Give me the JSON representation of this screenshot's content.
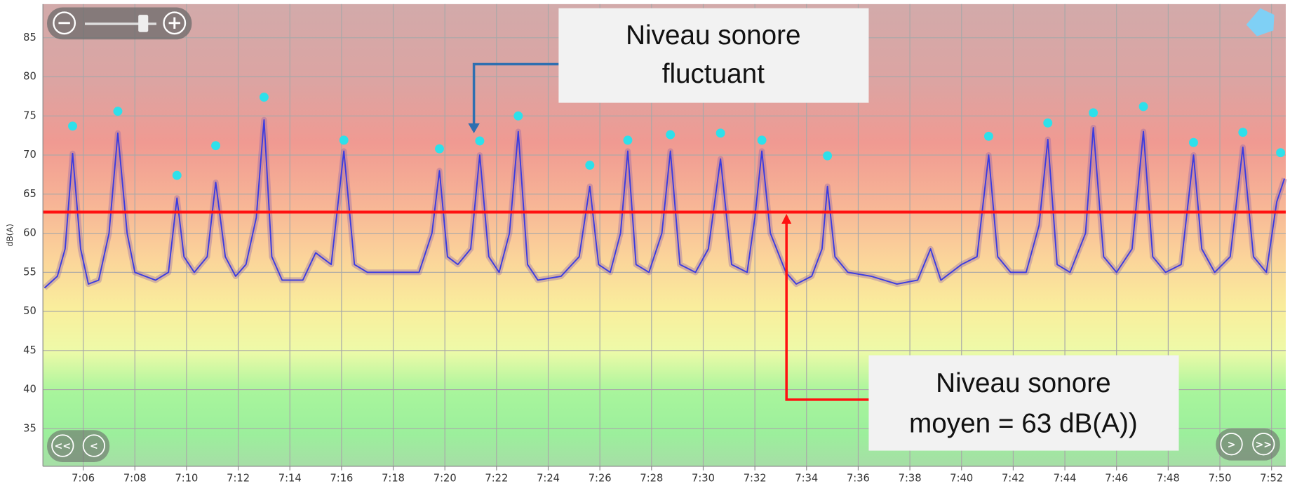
{
  "chart_data": {
    "type": "line",
    "y_label": "dB(A)",
    "xlim": [
      424.44,
      472.55
    ],
    "ylim": [
      30.2,
      89.3
    ],
    "yticks": [
      35,
      40,
      45,
      50,
      55,
      60,
      65,
      70,
      75,
      80,
      85
    ],
    "xticks": [
      {
        "value": 426,
        "label": "7:06"
      },
      {
        "value": 428,
        "label": "7:08"
      },
      {
        "value": 430,
        "label": "7:10"
      },
      {
        "value": 432,
        "label": "7:12"
      },
      {
        "value": 434,
        "label": "7:14"
      },
      {
        "value": 436,
        "label": "7:16"
      },
      {
        "value": 438,
        "label": "7:18"
      },
      {
        "value": 440,
        "label": "7:20"
      },
      {
        "value": 442,
        "label": "7:22"
      },
      {
        "value": 444,
        "label": "7:24"
      },
      {
        "value": 446,
        "label": "7:26"
      },
      {
        "value": 448,
        "label": "7:28"
      },
      {
        "value": 450,
        "label": "7:30"
      },
      {
        "value": 452,
        "label": "7:32"
      },
      {
        "value": 454,
        "label": "7:34"
      },
      {
        "value": 456,
        "label": "7:36"
      },
      {
        "value": 458,
        "label": "7:38"
      },
      {
        "value": 460,
        "label": "7:40"
      },
      {
        "value": 462,
        "label": "7:42"
      },
      {
        "value": 464,
        "label": "7:44"
      },
      {
        "value": 466,
        "label": "7:46"
      },
      {
        "value": 468,
        "label": "7:48"
      },
      {
        "value": 470,
        "label": "7:50"
      },
      {
        "value": 472,
        "label": "7:52"
      }
    ],
    "grid": true,
    "lines": [
      {
        "color": "#3b3be0",
        "x": [
          424.5,
          425.0,
          425.3,
          425.59,
          425.9,
          426.2,
          426.6,
          427.0,
          427.34,
          427.7,
          428.0,
          428.8,
          429.3,
          429.63,
          429.9,
          430.3,
          430.8,
          431.13,
          431.5,
          431.9,
          432.3,
          432.7,
          433.0,
          433.3,
          433.7,
          434.5,
          435.0,
          435.6,
          436.09,
          436.5,
          437.0,
          438.0,
          439.0,
          439.5,
          439.79,
          440.1,
          440.5,
          441.0,
          441.35,
          441.7,
          442.1,
          442.5,
          442.84,
          443.2,
          443.6,
          444.5,
          445.2,
          445.61,
          445.95,
          446.4,
          446.8,
          447.08,
          447.4,
          447.9,
          448.4,
          448.73,
          449.1,
          449.7,
          450.2,
          450.67,
          451.1,
          451.7,
          452.0,
          452.27,
          452.6,
          453.2,
          453.6,
          454.2,
          454.6,
          454.81,
          455.1,
          455.6,
          456.5,
          457.5,
          458.3,
          458.8,
          459.2,
          460.0,
          460.6,
          461.05,
          461.4,
          461.9,
          462.5,
          463.0,
          463.34,
          463.7,
          464.2,
          464.8,
          465.1,
          465.5,
          466.0,
          466.6,
          467.04,
          467.4,
          467.9,
          468.5,
          468.98,
          469.3,
          469.8,
          470.4,
          470.89,
          471.3,
          471.8,
          472.2,
          472.5
        ],
        "values": [
          53,
          54.5,
          58,
          70.2,
          58,
          53.5,
          54,
          60,
          72.8,
          60,
          55,
          54,
          55,
          64.5,
          57,
          55,
          57,
          66.5,
          57,
          54.5,
          56,
          62,
          74.5,
          57,
          54,
          54,
          57.5,
          56,
          70.5,
          56,
          55,
          55,
          55,
          60,
          68,
          57,
          56,
          58,
          70,
          57,
          55,
          60,
          73,
          56,
          54,
          54.5,
          57,
          66,
          56,
          55,
          60,
          70.5,
          56,
          55,
          60,
          70.5,
          56,
          55,
          58,
          69.5,
          56,
          55,
          62,
          70.5,
          60,
          55,
          53.5,
          54.5,
          58,
          66,
          57,
          55,
          54.5,
          53.5,
          54,
          58,
          54,
          56,
          57,
          70,
          57,
          55,
          55,
          61,
          72,
          56,
          55,
          60,
          73.5,
          57,
          55,
          58,
          73,
          57,
          55,
          56,
          70,
          58,
          55,
          57,
          71,
          57,
          55,
          64,
          67
        ]
      }
    ],
    "markers": {
      "color": "#2ee0ea",
      "x": [
        425.59,
        427.34,
        429.63,
        431.13,
        433.0,
        436.09,
        439.79,
        441.35,
        442.84,
        445.61,
        447.08,
        448.73,
        450.67,
        452.27,
        454.81,
        461.05,
        463.34,
        465.1,
        467.04,
        468.98,
        470.89,
        472.35
      ],
      "values": [
        73.7,
        75.6,
        67.4,
        71.2,
        77.4,
        71.9,
        70.8,
        71.8,
        75.0,
        68.7,
        71.9,
        72.6,
        72.8,
        71.9,
        69.9,
        72.4,
        74.1,
        75.4,
        76.2,
        71.6,
        72.9,
        70.3
      ]
    },
    "mean_line": {
      "value": 62.7,
      "color": "#ff1010"
    },
    "annotations": [
      {
        "lines": [
          "Niveau sonore",
          "fluctuant"
        ]
      },
      {
        "lines": [
          "Niveau sonore",
          "moyen = 63 dB(A))"
        ]
      }
    ],
    "controls": {
      "back_far": "<<",
      "back": "<",
      "forward": ">",
      "forward_far": ">>"
    }
  }
}
